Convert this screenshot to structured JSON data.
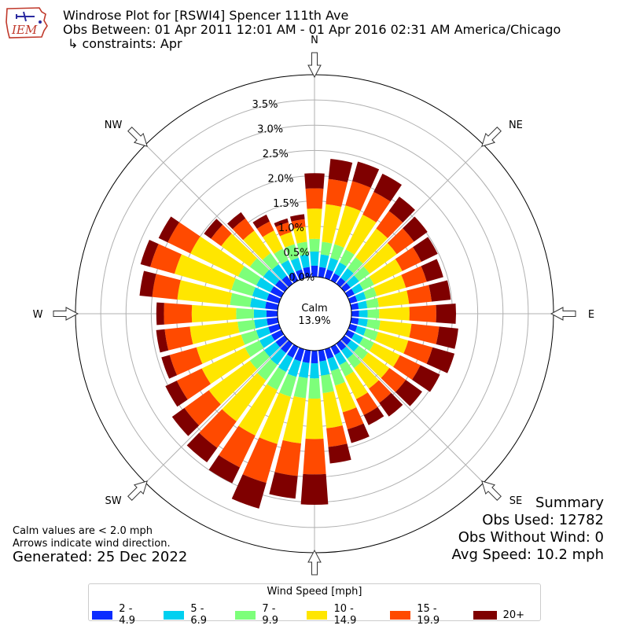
{
  "logo": {
    "text": "IEM",
    "colors": {
      "outline": "#c0392b",
      "text": "#c0392b",
      "plane": "#2a2aa0"
    }
  },
  "header": {
    "title": "Windrose Plot for [RSWI4] Spencer 111th Ave",
    "obs_between": "Obs Between: 01 Apr 2011 12:01 AM - 01 Apr 2016 02:31 AM America/Chicago",
    "constraints": "↳ constraints: Apr"
  },
  "notes": {
    "calm_note": "Calm values are < 2.0 mph",
    "arrow_note": "Arrows indicate wind direction.",
    "generated": "Generated: 25 Dec 2022"
  },
  "summary": {
    "title": "Summary",
    "obs_used": "Obs Used: 12782",
    "obs_without_wind": "Obs Without Wind: 0",
    "avg_speed": "Avg Speed: 10.2 mph"
  },
  "legend": {
    "title": "Wind Speed [mph]",
    "items": [
      {
        "label": "2 - 4.9",
        "color": "#0b2cff"
      },
      {
        "label": "5 - 6.9",
        "color": "#00d0f0"
      },
      {
        "label": "7 - 9.9",
        "color": "#7dff7a"
      },
      {
        "label": "10 - 14.9",
        "color": "#ffe600"
      },
      {
        "label": "15 - 19.9",
        "color": "#ff4a00"
      },
      {
        "label": "20+",
        "color": "#7f0000"
      }
    ]
  },
  "chart_data": {
    "type": "windrose",
    "calm": {
      "label": "Calm",
      "value": "13.9%"
    },
    "direction_labels": [
      "N",
      "NE",
      "E",
      "SE",
      "S",
      "SW",
      "W",
      "NW"
    ],
    "radial_ticks": [
      "0.0%",
      "0.5%",
      "1.0%",
      "1.5%",
      "2.0%",
      "2.5%",
      "3.0%",
      "3.5%"
    ],
    "rmax": 4.0,
    "series_names": [
      "2 - 4.9",
      "5 - 6.9",
      "7 - 9.9",
      "10 - 14.9",
      "15 - 19.9",
      "20+"
    ],
    "directions": [
      {
        "deg": 0,
        "cum": [
          0.22,
          0.5,
          0.75,
          1.35,
          1.75,
          2.05
        ]
      },
      {
        "deg": 10,
        "cum": [
          0.2,
          0.45,
          0.7,
          1.45,
          1.95,
          2.35
        ]
      },
      {
        "deg": 20,
        "cum": [
          0.18,
          0.42,
          0.7,
          1.5,
          2.0,
          2.4
        ]
      },
      {
        "deg": 30,
        "cum": [
          0.16,
          0.4,
          0.68,
          1.45,
          1.95,
          2.35
        ]
      },
      {
        "deg": 40,
        "cum": [
          0.15,
          0.38,
          0.65,
          1.35,
          1.78,
          2.13
        ]
      },
      {
        "deg": 50,
        "cum": [
          0.15,
          0.36,
          0.62,
          1.28,
          1.7,
          2.03
        ]
      },
      {
        "deg": 60,
        "cum": [
          0.15,
          0.34,
          0.58,
          1.2,
          1.62,
          1.98
        ]
      },
      {
        "deg": 70,
        "cum": [
          0.15,
          0.33,
          0.55,
          1.15,
          1.58,
          1.92
        ]
      },
      {
        "deg": 80,
        "cum": [
          0.15,
          0.32,
          0.55,
          1.15,
          1.6,
          1.98
        ]
      },
      {
        "deg": 90,
        "cum": [
          0.15,
          0.32,
          0.55,
          1.15,
          1.68,
          2.07
        ]
      },
      {
        "deg": 100,
        "cum": [
          0.15,
          0.33,
          0.58,
          1.2,
          1.75,
          2.13
        ]
      },
      {
        "deg": 110,
        "cum": [
          0.15,
          0.33,
          0.58,
          1.2,
          1.7,
          2.15
        ]
      },
      {
        "deg": 120,
        "cum": [
          0.15,
          0.34,
          0.58,
          1.15,
          1.6,
          2.03
        ]
      },
      {
        "deg": 130,
        "cum": [
          0.16,
          0.35,
          0.58,
          1.1,
          1.5,
          1.9
        ]
      },
      {
        "deg": 140,
        "cum": [
          0.17,
          0.37,
          0.6,
          1.1,
          1.45,
          1.78
        ]
      },
      {
        "deg": 150,
        "cum": [
          0.18,
          0.4,
          0.65,
          1.15,
          1.5,
          1.72
        ]
      },
      {
        "deg": 160,
        "cum": [
          0.2,
          0.45,
          0.75,
          1.3,
          1.65,
          1.93
        ]
      },
      {
        "deg": 170,
        "cum": [
          0.22,
          0.5,
          0.85,
          1.55,
          1.92,
          2.25
        ]
      },
      {
        "deg": 180,
        "cum": [
          0.25,
          0.55,
          0.95,
          1.75,
          2.45,
          3.05
        ]
      },
      {
        "deg": 190,
        "cum": [
          0.25,
          0.55,
          0.95,
          1.85,
          2.5,
          2.95
        ]
      },
      {
        "deg": 200,
        "cum": [
          0.25,
          0.57,
          0.98,
          1.95,
          2.75,
          3.28
        ]
      },
      {
        "deg": 210,
        "cum": [
          0.24,
          0.55,
          0.95,
          1.95,
          2.65,
          3.0
        ]
      },
      {
        "deg": 220,
        "cum": [
          0.23,
          0.52,
          0.9,
          1.9,
          2.55,
          2.9
        ]
      },
      {
        "deg": 230,
        "cum": [
          0.22,
          0.5,
          0.85,
          1.85,
          2.45,
          2.75
        ]
      },
      {
        "deg": 240,
        "cum": [
          0.22,
          0.48,
          0.8,
          1.75,
          2.3,
          2.55
        ]
      },
      {
        "deg": 250,
        "cum": [
          0.22,
          0.47,
          0.78,
          1.7,
          2.25,
          2.42
        ]
      },
      {
        "deg": 260,
        "cum": [
          0.22,
          0.47,
          0.8,
          1.75,
          2.25,
          2.42
        ]
      },
      {
        "deg": 270,
        "cum": [
          0.22,
          0.47,
          0.82,
          1.7,
          2.25,
          2.4
        ]
      },
      {
        "deg": 280,
        "cum": [
          0.25,
          0.55,
          0.95,
          2.0,
          2.5,
          2.75
        ]
      },
      {
        "deg": 290,
        "cum": [
          0.25,
          0.55,
          0.98,
          2.15,
          2.65,
          2.85
        ]
      },
      {
        "deg": 300,
        "cum": [
          0.24,
          0.55,
          0.95,
          2.0,
          2.5,
          2.7
        ]
      },
      {
        "deg": 310,
        "cum": [
          0.23,
          0.52,
          0.85,
          1.55,
          1.8,
          1.97
        ]
      },
      {
        "deg": 320,
        "cum": [
          0.2,
          0.48,
          0.75,
          1.3,
          1.6,
          1.75
        ]
      },
      {
        "deg": 330,
        "cum": [
          0.18,
          0.45,
          0.7,
          1.1,
          1.3,
          1.45
        ]
      },
      {
        "deg": 340,
        "cum": [
          0.18,
          0.42,
          0.7,
          0.95,
          1.15,
          1.23
        ]
      },
      {
        "deg": 350,
        "cum": [
          0.2,
          0.45,
          0.7,
          1.0,
          1.15,
          1.25
        ]
      }
    ]
  }
}
